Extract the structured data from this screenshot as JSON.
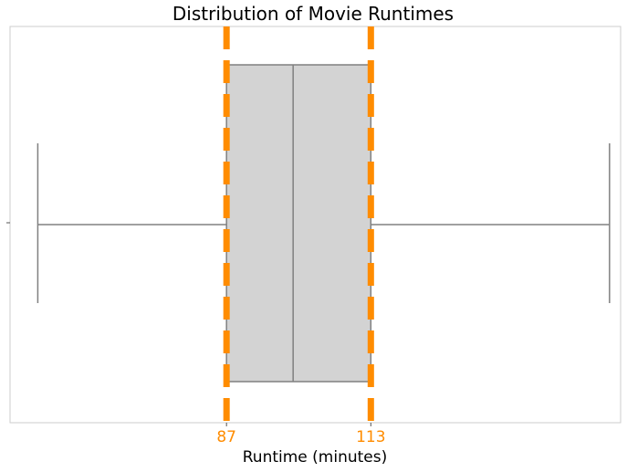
{
  "chart_data": {
    "type": "boxplot",
    "title": "Distribution of Movie Runtimes",
    "xlabel": "Runtime (minutes)",
    "ylabel": "",
    "grid": false,
    "xlim": [
      48,
      158
    ],
    "x_ticks": [
      87,
      113
    ],
    "x_tick_labels": [
      "87",
      "113"
    ],
    "box": {
      "whisker_low": 53,
      "q1": 87,
      "median": 99,
      "q3": 113,
      "whisker_high": 156
    },
    "reference_lines": [
      {
        "value": 87,
        "style": "dashed"
      },
      {
        "value": 113,
        "style": "dashed"
      }
    ],
    "colors": {
      "box_fill": "#d3d3d3",
      "box_edge": "#808080",
      "reference_line": "#ff8c00",
      "tick_label": "#ff8c00",
      "frame": "#cccccc"
    }
  }
}
